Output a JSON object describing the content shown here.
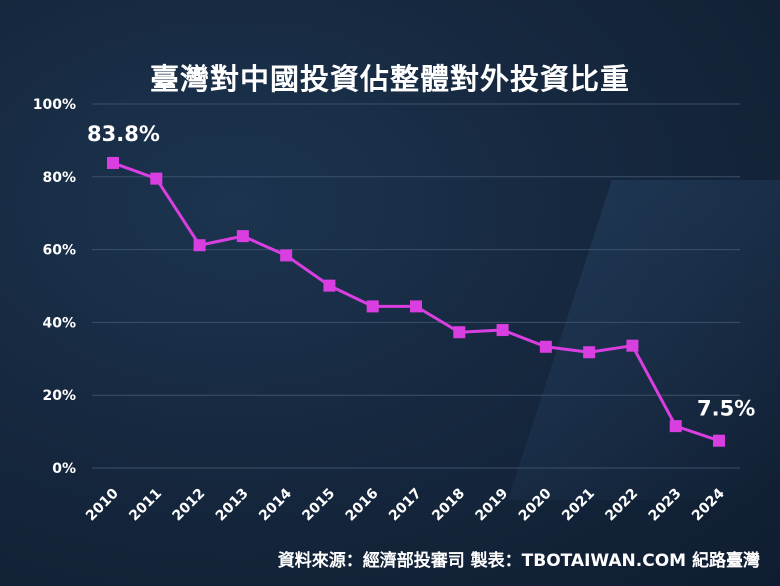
{
  "title": "臺灣對中國投資佔整體對外投資比重",
  "source": "資料來源：經濟部投審司  製表：TBOTAIWAN.COM 紀路臺灣",
  "colors": {
    "line": "#d93fe0",
    "grid": "#3b506b",
    "text": "#ffffff"
  },
  "chart_data": {
    "type": "line",
    "title": "臺灣對中國投資佔整體對外投資比重",
    "xlabel": "",
    "ylabel": "",
    "ylim": [
      0,
      100
    ],
    "yticks": [
      "0%",
      "20%",
      "40%",
      "60%",
      "80%",
      "100%"
    ],
    "grid": true,
    "categories": [
      "2010",
      "2011",
      "2012",
      "2013",
      "2014",
      "2015",
      "2016",
      "2017",
      "2018",
      "2019",
      "2020",
      "2021",
      "2022",
      "2023",
      "2024"
    ],
    "series": [
      {
        "values": [
          83.8,
          79.5,
          61.2,
          63.7,
          58.4,
          50.1,
          44.4,
          44.4,
          37.3,
          37.9,
          33.3,
          31.8,
          33.6,
          11.5,
          7.5
        ]
      }
    ],
    "annotations": [
      {
        "index": 0,
        "text": "83.8%"
      },
      {
        "index": 14,
        "text": "7.5%"
      }
    ]
  }
}
